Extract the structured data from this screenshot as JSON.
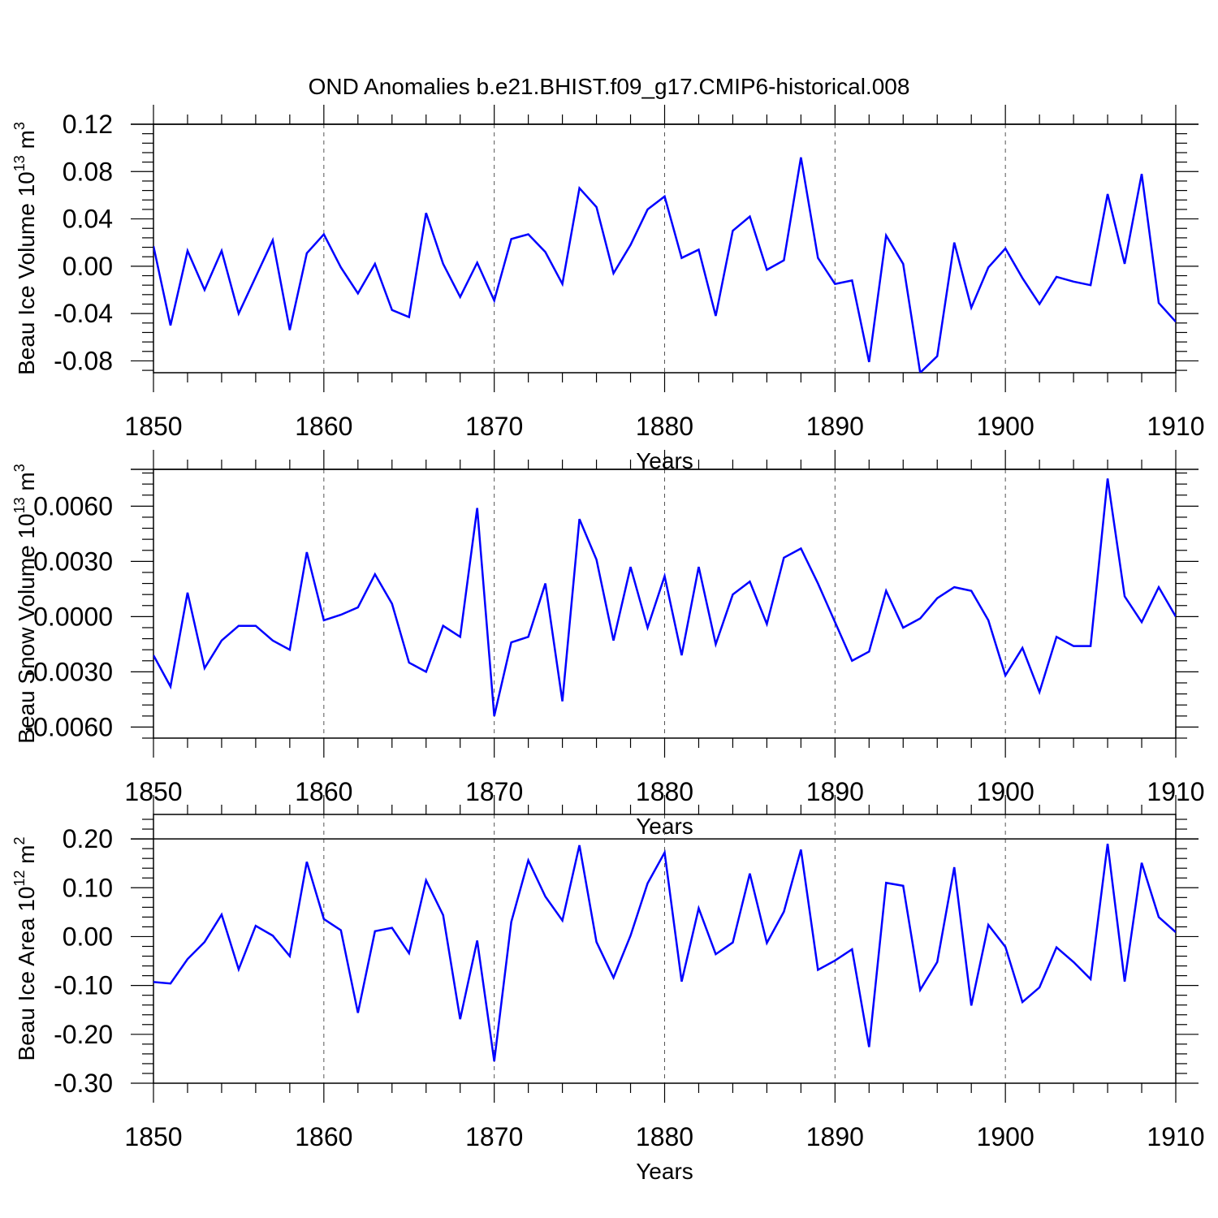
{
  "title": "OND Anomalies b.e21.BHIST.f09_g17.CMIP6-historical.008",
  "colors": {
    "line": "#0000ff",
    "axis": "#000000",
    "grid": "#555555"
  },
  "chart_data": [
    {
      "type": "line",
      "ylabel": "Beau Ice Volume 10",
      "ylabel_exponent": "13",
      "ylabel_unit": " m",
      "ylabel_unit_exponent": "3",
      "xlabel": "Years",
      "xlim": [
        1850,
        1910
      ],
      "ylim": [
        -0.09,
        0.12
      ],
      "x_ticks": [
        1850,
        1860,
        1870,
        1880,
        1890,
        1900,
        1910
      ],
      "x_tick_labels": [
        "1850",
        "1860",
        "1870",
        "1880",
        "1890",
        "1900",
        "1910"
      ],
      "y_ticks": [
        0.12,
        0.08,
        0.04,
        0.0,
        -0.04,
        -0.08
      ],
      "y_tick_labels": [
        "0.12",
        "0.08",
        "0.04",
        "0.00",
        "-0.04",
        "-0.08"
      ],
      "grid_x": [
        1860,
        1870,
        1880,
        1890,
        1900
      ],
      "ref_lines": [
        0.12
      ],
      "series": [
        {
          "name": "Beau Ice Volume",
          "x_start": 1850,
          "values": [
            0.017,
            -0.05,
            0.013,
            -0.02,
            0.013,
            -0.04,
            -0.009,
            0.022,
            -0.054,
            0.011,
            0.027,
            -0.001,
            -0.023,
            0.002,
            -0.037,
            -0.043,
            0.045,
            0.002,
            -0.026,
            0.003,
            -0.029,
            0.023,
            0.027,
            0.012,
            -0.015,
            0.066,
            0.05,
            -0.006,
            0.018,
            0.048,
            0.059,
            0.007,
            0.014,
            -0.042,
            0.03,
            0.042,
            -0.003,
            0.005,
            0.092,
            0.007,
            -0.015,
            -0.012,
            -0.081,
            0.026,
            0.002,
            -0.09,
            -0.076,
            0.02,
            -0.035,
            -0.001,
            0.015,
            -0.01,
            -0.032,
            -0.009,
            -0.013,
            -0.016,
            0.061,
            0.002,
            0.078,
            -0.031,
            -0.047
          ]
        }
      ]
    },
    {
      "type": "line",
      "ylabel": "Beau Snow Volume 10",
      "ylabel_exponent": "13",
      "ylabel_unit": " m",
      "ylabel_unit_exponent": "3",
      "xlabel": "Years",
      "xlim": [
        1850,
        1910
      ],
      "ylim": [
        -0.0066,
        0.008
      ],
      "x_ticks": [
        1850,
        1860,
        1870,
        1880,
        1890,
        1900,
        1910
      ],
      "x_tick_labels": [
        "1850",
        "1860",
        "1870",
        "1880",
        "1890",
        "1900",
        "1910"
      ],
      "y_ticks": [
        0.006,
        0.003,
        0.0,
        -0.003,
        -0.006
      ],
      "y_tick_labels": [
        "0.0060",
        "0.0030",
        "0.0000",
        "-0.0030",
        "-0.0060"
      ],
      "grid_x": [
        1860,
        1870,
        1880,
        1890,
        1900
      ],
      "ref_lines": [
        0.008
      ],
      "series": [
        {
          "name": "Beau Snow Volume",
          "x_start": 1850,
          "values": [
            -0.0021,
            -0.0038,
            0.0013,
            -0.0028,
            -0.0013,
            -0.0005,
            -0.0005,
            -0.0013,
            -0.0018,
            0.0035,
            -0.0002,
            0.0001,
            0.0005,
            0.0023,
            0.0007,
            -0.0025,
            -0.003,
            -0.0005,
            -0.0011,
            0.0059,
            -0.0054,
            -0.0014,
            -0.0011,
            0.0018,
            -0.0046,
            0.0053,
            0.0031,
            -0.0013,
            0.0027,
            -0.0006,
            0.0022,
            -0.0021,
            0.0027,
            -0.0015,
            0.0012,
            0.0019,
            -0.0004,
            0.0032,
            0.0037,
            0.0018,
            -0.0003,
            -0.0024,
            -0.0019,
            0.0014,
            -0.0006,
            -0.0001,
            0.001,
            0.0016,
            0.0014,
            -0.0002,
            -0.0032,
            -0.0017,
            -0.0041,
            -0.0011,
            -0.0016,
            -0.0016,
            0.0075,
            0.0011,
            -0.0003,
            0.0016,
            0.0
          ]
        }
      ]
    },
    {
      "type": "line",
      "ylabel": "Beau Ice Area 10",
      "ylabel_exponent": "12",
      "ylabel_unit": " m",
      "ylabel_unit_exponent": "2",
      "xlabel": "Years",
      "xlim": [
        1850,
        1910
      ],
      "ylim": [
        -0.3,
        0.25
      ],
      "x_ticks": [
        1850,
        1860,
        1870,
        1880,
        1890,
        1900,
        1910
      ],
      "x_tick_labels": [
        "1850",
        "1860",
        "1870",
        "1880",
        "1890",
        "1900",
        "1910"
      ],
      "y_ticks": [
        0.2,
        0.1,
        0.0,
        -0.1,
        -0.2,
        -0.3
      ],
      "y_tick_labels": [
        "0.20",
        "0.10",
        "0.00",
        "-0.10",
        "-0.20",
        "-0.30"
      ],
      "grid_x": [
        1860,
        1870,
        1880,
        1890,
        1900
      ],
      "ref_lines": [
        0.2
      ],
      "series": [
        {
          "name": "Beau Ice Area",
          "x_start": 1850,
          "values": [
            -0.093,
            -0.096,
            -0.046,
            -0.011,
            0.045,
            -0.067,
            0.022,
            0.002,
            -0.04,
            0.153,
            0.036,
            0.013,
            -0.156,
            0.011,
            0.018,
            -0.034,
            0.115,
            0.044,
            -0.169,
            -0.008,
            -0.255,
            0.03,
            0.156,
            0.082,
            0.033,
            0.187,
            -0.011,
            -0.084,
            0.002,
            0.109,
            0.172,
            -0.092,
            0.058,
            -0.036,
            -0.012,
            0.129,
            -0.013,
            0.051,
            0.178,
            -0.068,
            -0.049,
            -0.026,
            -0.226,
            0.11,
            0.104,
            -0.109,
            -0.052,
            0.142,
            -0.141,
            0.024,
            -0.021,
            -0.134,
            -0.104,
            -0.022,
            -0.052,
            -0.087,
            0.19,
            -0.092,
            0.151,
            0.04,
            0.009
          ]
        }
      ]
    }
  ]
}
